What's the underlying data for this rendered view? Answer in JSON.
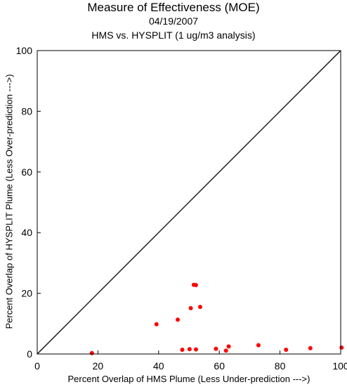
{
  "chart_data": {
    "type": "scatter",
    "title": "Measure of Effectiveness (MOE)",
    "subtitle_date": "04/19/2007",
    "subtitle": "HMS vs. HYSPLIT  (1 ug/m3 analysis)",
    "xlabel": "Percent Overlap of HMS Plume (Less Under-prediction --->)",
    "ylabel": "Percent Overlap of HYSPLIT Plume (Less Over-prediction --->)",
    "xlim": [
      0,
      100
    ],
    "ylim": [
      0,
      100
    ],
    "xticks": [
      0,
      20,
      40,
      60,
      80,
      100
    ],
    "yticks": [
      0,
      20,
      40,
      60,
      80,
      100
    ],
    "reference_line": {
      "x": [
        0,
        100
      ],
      "y": [
        0,
        100
      ]
    },
    "grid": false,
    "point_color": "#ff0000",
    "line_color": "#000000",
    "points": [
      {
        "x": 18,
        "y": 0.3
      },
      {
        "x": 39.3,
        "y": 9.8
      },
      {
        "x": 46.3,
        "y": 11.3
      },
      {
        "x": 47.8,
        "y": 1.4
      },
      {
        "x": 50.2,
        "y": 1.6
      },
      {
        "x": 50.6,
        "y": 15.1
      },
      {
        "x": 51.6,
        "y": 22.8
      },
      {
        "x": 52.3,
        "y": 22.7
      },
      {
        "x": 52.3,
        "y": 1.5
      },
      {
        "x": 53.7,
        "y": 15.5
      },
      {
        "x": 58.9,
        "y": 1.7
      },
      {
        "x": 62.2,
        "y": 1.1
      },
      {
        "x": 63.1,
        "y": 2.5
      },
      {
        "x": 72.9,
        "y": 2.9
      },
      {
        "x": 82,
        "y": 1.4
      },
      {
        "x": 90,
        "y": 1.9
      },
      {
        "x": 100.3,
        "y": 2.1
      }
    ]
  }
}
